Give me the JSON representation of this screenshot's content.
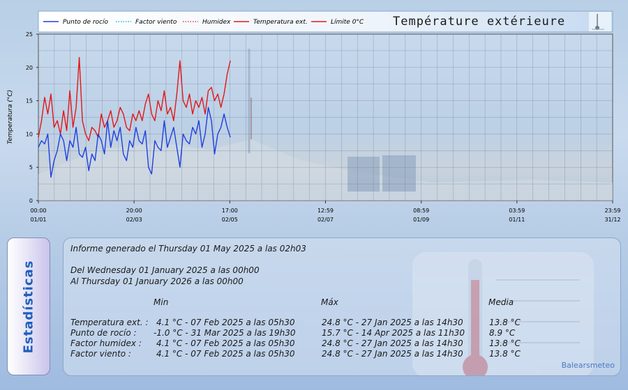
{
  "chart_data": {
    "type": "line",
    "title": "Température extérieure",
    "ylabel": "Temperatura (°C)",
    "xlabel": "",
    "ylim": [
      0,
      25
    ],
    "yticks": [
      "0",
      "5",
      "10",
      "15",
      "20",
      "25"
    ],
    "xticks": [
      {
        "time": "00:00",
        "date": "01/01"
      },
      {
        "time": "20:00",
        "date": "02/03"
      },
      {
        "time": "17:00",
        "date": "02/05"
      },
      {
        "time": "12:59",
        "date": "02/07"
      },
      {
        "time": "08:59",
        "date": "01/09"
      },
      {
        "time": "03:59",
        "date": "01/11"
      },
      {
        "time": "23:59",
        "date": "31/12"
      }
    ],
    "xlim": [
      0,
      364.99
    ],
    "grid": true,
    "legend_position": "top",
    "legend": [
      {
        "name": "Punto de rocío",
        "color": "#1f3fe0",
        "style": "solid"
      },
      {
        "name": "Factor viento",
        "color": "#22b8c8",
        "style": "dotted"
      },
      {
        "name": "Humidex",
        "color": "#e04040",
        "style": "dotted"
      },
      {
        "name": "Temperatura ext.",
        "color": "#e01818",
        "style": "solid"
      },
      {
        "name": "Límite 0°C",
        "color": "#e01818",
        "style": "solid"
      }
    ],
    "series": [
      {
        "name": "Temperatura ext.",
        "color": "#e01818",
        "x": [
          0,
          2,
          4,
          6,
          8,
          10,
          12,
          14,
          16,
          18,
          20,
          22,
          24,
          26,
          28,
          30,
          32,
          34,
          36,
          38,
          40,
          42,
          44,
          46,
          48,
          50,
          52,
          54,
          56,
          58,
          60,
          62,
          64,
          66,
          68,
          70,
          72,
          74,
          76,
          78,
          80,
          82,
          84,
          86,
          88,
          90,
          92,
          94,
          96,
          98,
          100,
          102,
          104,
          106,
          108,
          110,
          112,
          114,
          116,
          118,
          120,
          122
        ],
        "y": [
          9.5,
          12,
          15.5,
          13,
          16,
          11,
          12,
          10,
          13.5,
          10.5,
          16.5,
          11,
          14,
          21.5,
          12,
          10,
          9,
          11,
          10.5,
          9.5,
          13,
          11,
          12,
          13.5,
          11,
          12,
          14,
          13,
          11,
          10.5,
          13,
          12,
          13.5,
          12,
          14.5,
          16,
          13,
          12,
          15,
          13.5,
          16.5,
          13,
          14,
          12,
          16,
          21,
          15,
          14,
          16,
          13,
          15,
          14,
          15.5,
          13,
          16.5,
          17,
          15,
          16,
          14,
          16,
          19,
          21
        ]
      },
      {
        "name": "Punto de rocío",
        "color": "#1f3fe0",
        "x": [
          0,
          2,
          4,
          6,
          8,
          10,
          12,
          14,
          16,
          18,
          20,
          22,
          24,
          26,
          28,
          30,
          32,
          34,
          36,
          38,
          40,
          42,
          44,
          46,
          48,
          50,
          52,
          54,
          56,
          58,
          60,
          62,
          64,
          66,
          68,
          70,
          72,
          74,
          76,
          78,
          80,
          82,
          84,
          86,
          88,
          90,
          92,
          94,
          96,
          98,
          100,
          102,
          104,
          106,
          108,
          110,
          112,
          114,
          116,
          118,
          120,
          122
        ],
        "y": [
          8,
          9,
          8.5,
          10,
          3.5,
          6,
          7.5,
          10,
          9,
          6,
          9,
          8,
          11,
          7,
          6.5,
          8,
          4.5,
          7,
          6,
          10,
          9,
          7,
          12,
          8,
          10.5,
          9,
          11,
          7,
          6,
          9,
          8,
          11,
          9,
          8.5,
          10.5,
          5,
          4,
          9,
          8,
          7.5,
          12,
          8,
          9.5,
          11,
          8,
          5,
          10,
          9,
          8.5,
          11,
          10,
          12,
          8,
          10,
          14,
          12,
          7,
          10,
          11,
          13,
          11,
          9.5
        ]
      }
    ]
  },
  "stats": {
    "side_tab_label": "Estadísticas",
    "report_line": "Informe generado el Thursday 01 May 2025 a las 02h03",
    "from_line": "Del Wednesday 01 January 2025 a las 00h00",
    "to_line": "Al Thursday 01 January 2026 a las 00h00",
    "headers": {
      "min": "Min",
      "max": "Máx",
      "avg": "Media"
    },
    "rows": [
      {
        "label": "Temperatura ext. :",
        "min": "4.1 °C - 07 Feb 2025 a las 05h30",
        "max": "24.8 °C - 27 Jan 2025 a las 14h30",
        "avg": "13.8 °C"
      },
      {
        "label": "Punto de rocío :",
        "min": "-1.0 °C - 31 Mar 2025 a las 19h30",
        "max": "15.7 °C - 14 Apr 2025 a las 11h30",
        "avg": "8.9 °C"
      },
      {
        "label": "Factor humidex :",
        "min": "4.1 °C - 07 Feb 2025 a las 05h30",
        "max": "24.8 °C - 27 Jan 2025 a las 14h30",
        "avg": "13.8 °C"
      },
      {
        "label": "Factor viento :",
        "min": "4.1 °C - 07 Feb 2025 a las 05h30",
        "max": "24.8 °C - 27 Jan 2025 a las 14h30",
        "avg": "13.8 °C"
      }
    ],
    "credit": "Balearsmeteo"
  }
}
